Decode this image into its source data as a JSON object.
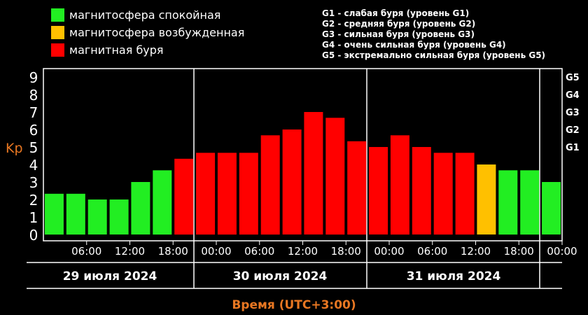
{
  "legend": [
    {
      "label": "магнитосфера спокойная",
      "color": "#22ee22"
    },
    {
      "label": "магнитосфера возбужденная",
      "color": "#ffc000"
    },
    {
      "label": "магнитная буря",
      "color": "#ff0000"
    }
  ],
  "storm_legend": [
    "G1 - слабая буря (уровень G1)",
    "G2 - средняя буря (уровень G2)",
    "G3 - сильная буря (уровень G3)",
    "G4 - очень сильная буря (уровень G4)",
    "G5 - экстремально сильная буря (уровень G5)"
  ],
  "chart_data": {
    "type": "bar",
    "ylabel": "Kp",
    "xlabel": "Время (UTC+3:00)",
    "ylim": [
      0,
      9
    ],
    "yticks": [
      "0",
      "1",
      "2",
      "3",
      "4",
      "5",
      "6",
      "7",
      "8",
      "9"
    ],
    "right_ticks": [
      {
        "label": "G1",
        "value": 5
      },
      {
        "label": "G2",
        "value": 6
      },
      {
        "label": "G3",
        "value": 7
      },
      {
        "label": "G4",
        "value": 8
      },
      {
        "label": "G5",
        "value": 9
      }
    ],
    "time_ticks": [
      "06:00",
      "12:00",
      "18:00",
      "00:00",
      "06:00",
      "12:00",
      "18:00",
      "00:00",
      "06:00",
      "12:00",
      "18:00",
      "00:00"
    ],
    "days": [
      "29 июля 2024",
      "30 июля 2024",
      "31 июля 2024"
    ],
    "values": [
      2.33,
      2.33,
      2.0,
      2.0,
      3.0,
      3.67,
      4.33,
      4.67,
      4.67,
      4.67,
      5.67,
      6.0,
      7.0,
      6.67,
      5.33,
      5.0,
      5.67,
      5.0,
      4.67,
      4.67,
      4.0,
      3.67,
      3.67,
      3.0
    ],
    "levels": [
      "quiet",
      "quiet",
      "quiet",
      "quiet",
      "quiet",
      "quiet",
      "storm",
      "storm",
      "storm",
      "storm",
      "storm",
      "storm",
      "storm",
      "storm",
      "storm",
      "storm",
      "storm",
      "storm",
      "storm",
      "storm",
      "active",
      "quiet",
      "quiet",
      "quiet"
    ],
    "colors": {
      "quiet": "#22ee22",
      "active": "#ffc000",
      "storm": "#ff0000"
    },
    "grid": false
  }
}
